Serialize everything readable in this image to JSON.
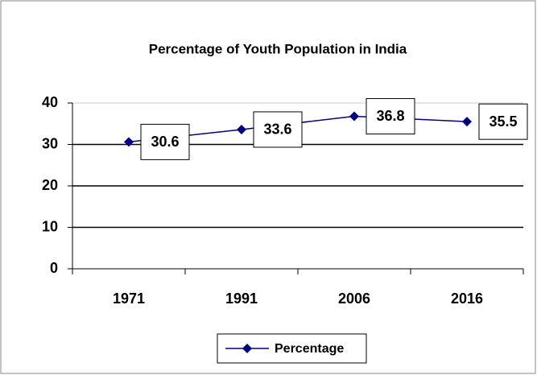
{
  "chart_data": {
    "type": "line",
    "title": "Percentage of Youth Population in India",
    "categories": [
      "1971",
      "1991",
      "2006",
      "2016"
    ],
    "series": [
      {
        "name": "Percentage",
        "color": "#000080",
        "values": [
          30.6,
          33.6,
          36.8,
          35.5
        ]
      }
    ],
    "ylim": [
      0,
      40
    ],
    "yticks": [
      0,
      10,
      20,
      30,
      40
    ],
    "grid": true,
    "legend": "bottom"
  }
}
